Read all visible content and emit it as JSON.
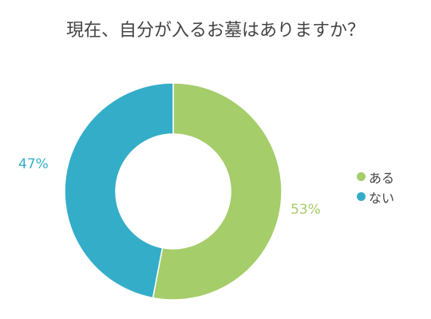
{
  "title": "現在、自分が入るお墓はありますか？",
  "chart_data": {
    "type": "pie",
    "title": "現在、自分が入るお墓はありますか？",
    "donut": true,
    "legend_position": "right",
    "series": [
      {
        "name": "ある",
        "value": 53,
        "label": "53%",
        "color": "#a5cd6a"
      },
      {
        "name": "ない",
        "value": 47,
        "label": "47%",
        "color": "#34adc9"
      }
    ]
  }
}
